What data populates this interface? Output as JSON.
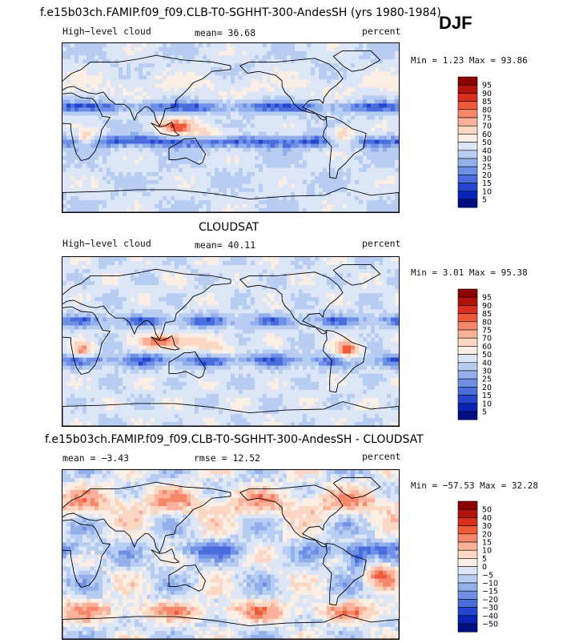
{
  "main_title": "f.e15b03ch.FAMIP.f09_f09.CLB-T0-SGHHT-300-AndesSH (yrs 1980-1984)",
  "season": "DJF",
  "panels": [
    {
      "id": "model",
      "title": "",
      "left_label": "High−level cloud",
      "center_label": "mean=  36.68",
      "right_label": "percent",
      "minmax": "Min =   1.23 Max =  93.86"
    },
    {
      "id": "obs",
      "title": "CLOUDSAT",
      "left_label": "High−level cloud",
      "center_label": "mean=  40.11",
      "right_label": "percent",
      "minmax": "Min =   3.01 Max =  95.38"
    },
    {
      "id": "diff",
      "title": "f.e15b03ch.FAMIP.f09_f09.CLB-T0-SGHHT-300-AndesSH - CLOUDSAT",
      "left_label": "mean =  −3.43",
      "center_label": "rmse =  12.52",
      "right_label": "percent",
      "minmax": "Min = −57.53 Max =  32.28"
    }
  ],
  "chart_data": [
    {
      "type": "heatmap",
      "title": "High-level cloud (model)",
      "field": "High-level cloud",
      "units": "percent",
      "mean": 36.68,
      "min": 1.23,
      "max": 93.86,
      "colorbar": {
        "levels": [
          "95",
          "90",
          "85",
          "80",
          "75",
          "70",
          "60",
          "50",
          "40",
          "30",
          "25",
          "20",
          "15",
          "10",
          "5"
        ],
        "colors": [
          "#8b0000",
          "#b2130c",
          "#d8301d",
          "#ee5a3a",
          "#f7876b",
          "#fcb29a",
          "#fbd7c4",
          "#fbeee4",
          "#dce6f7",
          "#b8cdf2",
          "#93b0ec",
          "#6f90e6",
          "#4a6ddd",
          "#2545cf",
          "#0a23b6",
          "#000e80"
        ]
      }
    },
    {
      "type": "heatmap",
      "title": "CLOUDSAT",
      "field": "High-level cloud",
      "units": "percent",
      "mean": 40.11,
      "min": 3.01,
      "max": 95.38,
      "colorbar": {
        "levels": [
          "95",
          "90",
          "85",
          "80",
          "75",
          "70",
          "60",
          "50",
          "40",
          "30",
          "25",
          "20",
          "15",
          "10",
          "5"
        ],
        "colors": [
          "#8b0000",
          "#b2130c",
          "#d8301d",
          "#ee5a3a",
          "#f7876b",
          "#fcb29a",
          "#fbd7c4",
          "#fbeee4",
          "#dce6f7",
          "#b8cdf2",
          "#93b0ec",
          "#6f90e6",
          "#4a6ddd",
          "#2545cf",
          "#0a23b6",
          "#000e80"
        ]
      }
    },
    {
      "type": "heatmap",
      "title": "f.e15b03ch.FAMIP.f09_f09.CLB-T0-SGHHT-300-AndesSH - CLOUDSAT",
      "field": "High-level cloud difference",
      "units": "percent",
      "mean": -3.43,
      "rmse": 12.52,
      "min": -57.53,
      "max": 32.28,
      "colorbar": {
        "levels": [
          "50",
          "40",
          "30",
          "20",
          "15",
          "10",
          "5",
          "0",
          "−5",
          "−10",
          "−15",
          "−20",
          "−30",
          "−40",
          "−50"
        ],
        "colors": [
          "#8b0000",
          "#b2130c",
          "#d8301d",
          "#ee5a3a",
          "#f7876b",
          "#fcb29a",
          "#fbd7c4",
          "#fbeee4",
          "#dce6f7",
          "#b8cdf2",
          "#93b0ec",
          "#6f90e6",
          "#4a6ddd",
          "#2545cf",
          "#0a23b6",
          "#000e80"
        ]
      }
    }
  ]
}
